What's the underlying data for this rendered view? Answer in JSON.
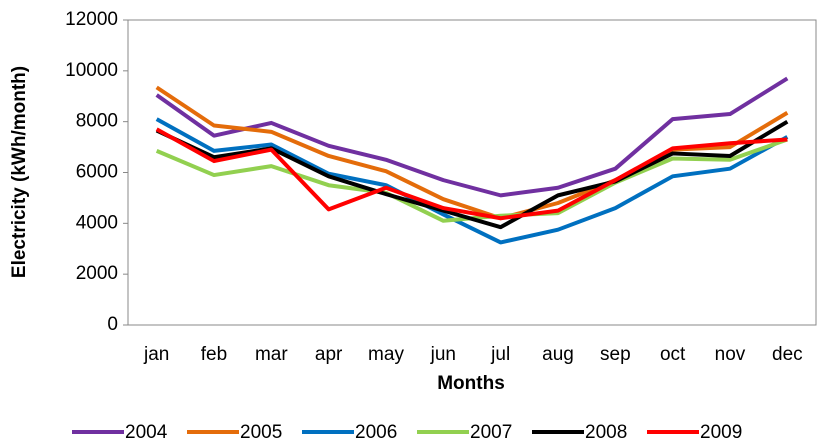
{
  "chart_data": {
    "type": "line",
    "x_label": "Months",
    "y_label": "Electricity (kWh/month)",
    "categories": [
      "jan",
      "feb",
      "mar",
      "apr",
      "may",
      "jun",
      "jul",
      "aug",
      "sep",
      "oct",
      "nov",
      "dec"
    ],
    "series": [
      {
        "name": "2004",
        "color": "#7030a0",
        "values": [
          9050,
          7450,
          7950,
          7050,
          6500,
          5700,
          5100,
          5400,
          6150,
          8100,
          8300,
          9700
        ]
      },
      {
        "name": "2005",
        "color": "#e46c0a",
        "values": [
          9350,
          7850,
          7600,
          6650,
          6050,
          4950,
          4200,
          4800,
          5700,
          6900,
          7000,
          8350
        ]
      },
      {
        "name": "2006",
        "color": "#0070c0",
        "values": [
          8100,
          6850,
          7100,
          5950,
          5500,
          4350,
          3250,
          3750,
          4600,
          5850,
          6150,
          7400
        ]
      },
      {
        "name": "2007",
        "color": "#92d050",
        "values": [
          6850,
          5900,
          6250,
          5500,
          5200,
          4100,
          4300,
          4400,
          5600,
          6550,
          6500,
          7300
        ]
      },
      {
        "name": "2008",
        "color": "#000000",
        "values": [
          7650,
          6600,
          6950,
          5850,
          5150,
          4500,
          3850,
          5100,
          5650,
          6750,
          6650,
          8000
        ]
      },
      {
        "name": "2009",
        "color": "#ff0000",
        "values": [
          7700,
          6450,
          6900,
          4550,
          5400,
          4600,
          4200,
          4500,
          5700,
          6950,
          7150,
          7300
        ]
      }
    ],
    "ylim": [
      0,
      12000
    ],
    "yticks": [
      0,
      2000,
      4000,
      6000,
      8000,
      10000,
      12000
    ],
    "grid": false,
    "legend": "bottom"
  }
}
